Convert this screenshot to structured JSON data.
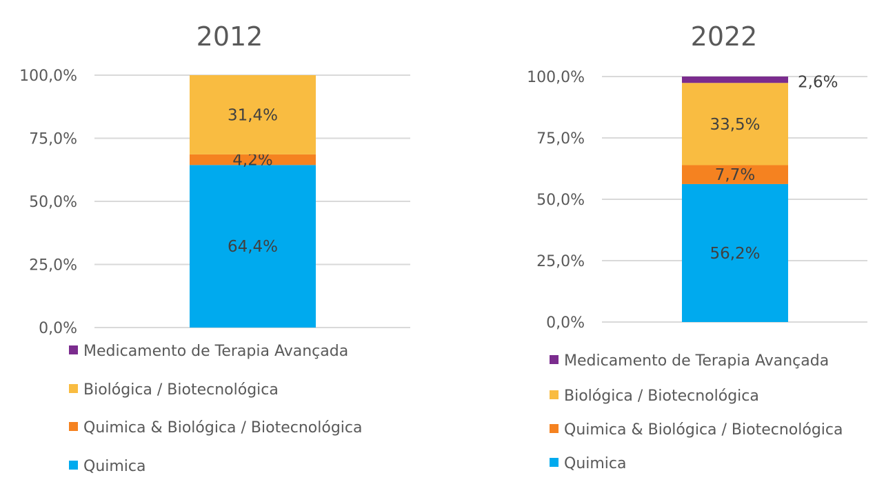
{
  "chart_data": [
    {
      "type": "bar",
      "stacked": true,
      "title": "2012",
      "ylim": [
        0,
        100
      ],
      "yticks": [
        "0,0%",
        "25,0%",
        "50,0%",
        "75,0%",
        "100,0%"
      ],
      "grid": true,
      "legend_placement": "bottom",
      "series": [
        {
          "name": "Quimica",
          "value": 64.4,
          "label": "64,4%",
          "color": "#00AAEE"
        },
        {
          "name": "Quimica & Biológica / Biotecnológica",
          "value": 4.2,
          "label": "4,2%",
          "color": "#F58220"
        },
        {
          "name": "Biológica / Biotecnológica",
          "value": 31.4,
          "label": "31,4%",
          "color": "#F9BC41"
        },
        {
          "name": "Medicamento de Terapia Avançada",
          "value": 0,
          "label": "",
          "color": "#7B2C8E"
        }
      ]
    },
    {
      "type": "bar",
      "stacked": true,
      "title": "2022",
      "ylim": [
        0,
        100
      ],
      "yticks": [
        "0,0%",
        "25,0%",
        "50,0%",
        "75,0%",
        "100,0%"
      ],
      "grid": true,
      "legend_placement": "bottom",
      "series": [
        {
          "name": "Quimica",
          "value": 56.2,
          "label": "56,2%",
          "color": "#00AAEE"
        },
        {
          "name": "Quimica & Biológica / Biotecnológica",
          "value": 7.7,
          "label": "7,7%",
          "color": "#F58220"
        },
        {
          "name": "Biológica / Biotecnológica",
          "value": 33.5,
          "label": "33,5%",
          "color": "#F9BC41"
        },
        {
          "name": "Medicamento de Terapia Avançada",
          "value": 2.6,
          "label": "2,6%",
          "color": "#7B2C8E"
        }
      ]
    }
  ]
}
